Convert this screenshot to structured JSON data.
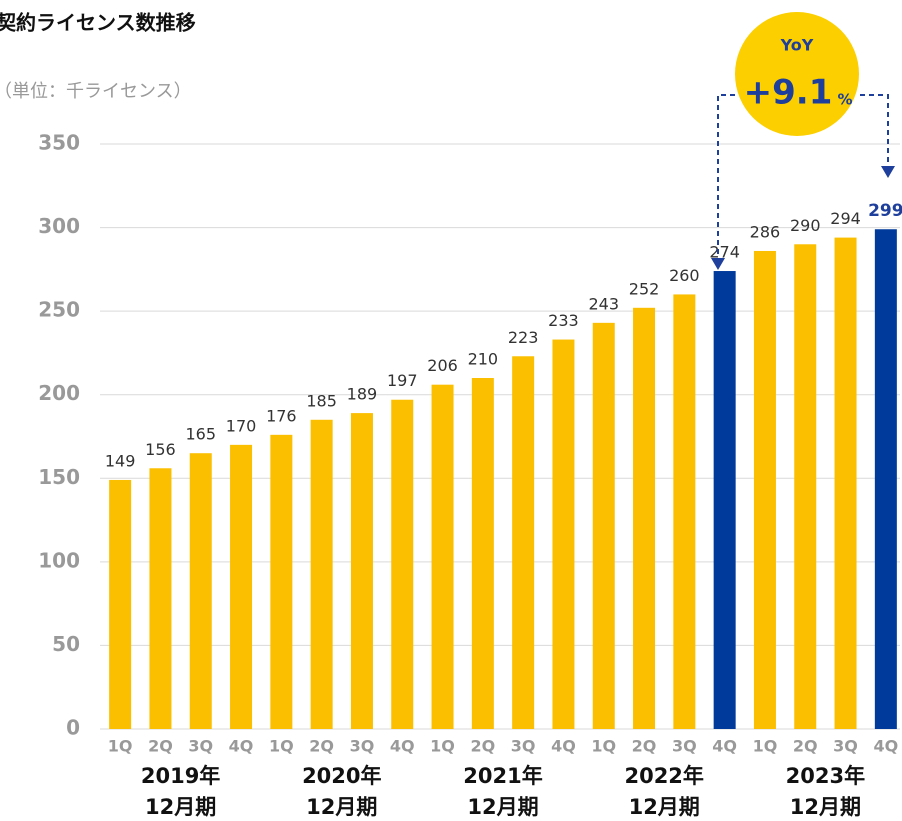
{
  "chart_data": {
    "type": "bar",
    "title": "契約ライセンス数推移",
    "subtitle": "（単位：千ライセンス）",
    "categories": [
      "1Q",
      "2Q",
      "3Q",
      "4Q",
      "1Q",
      "2Q",
      "3Q",
      "4Q",
      "1Q",
      "2Q",
      "3Q",
      "4Q",
      "1Q",
      "2Q",
      "3Q",
      "4Q",
      "1Q",
      "2Q",
      "3Q",
      "4Q"
    ],
    "groups": [
      [
        "2019年",
        "12月期"
      ],
      [
        "2020年",
        "12月期"
      ],
      [
        "2021年",
        "12月期"
      ],
      [
        "2022年",
        "12月期"
      ],
      [
        "2023年",
        "12月期"
      ]
    ],
    "values": [
      149,
      156,
      165,
      170,
      176,
      185,
      189,
      197,
      206,
      210,
      223,
      233,
      243,
      252,
      260,
      274,
      286,
      290,
      294,
      299
    ],
    "colors": [
      "#fbbf00",
      "#fbbf00",
      "#fbbf00",
      "#fbbf00",
      "#fbbf00",
      "#fbbf00",
      "#fbbf00",
      "#fbbf00",
      "#fbbf00",
      "#fbbf00",
      "#fbbf00",
      "#fbbf00",
      "#fbbf00",
      "#fbbf00",
      "#fbbf00",
      "#003a9b",
      "#fbbf00",
      "#fbbf00",
      "#fbbf00",
      "#003a9b"
    ],
    "highlight_label": 19,
    "ylim": [
      0,
      350
    ],
    "yticks": [
      0,
      50,
      100,
      150,
      200,
      250,
      300,
      350
    ],
    "grid": true,
    "annotation": {
      "label": "YoY",
      "value": "+9.1",
      "unit": "%"
    }
  }
}
